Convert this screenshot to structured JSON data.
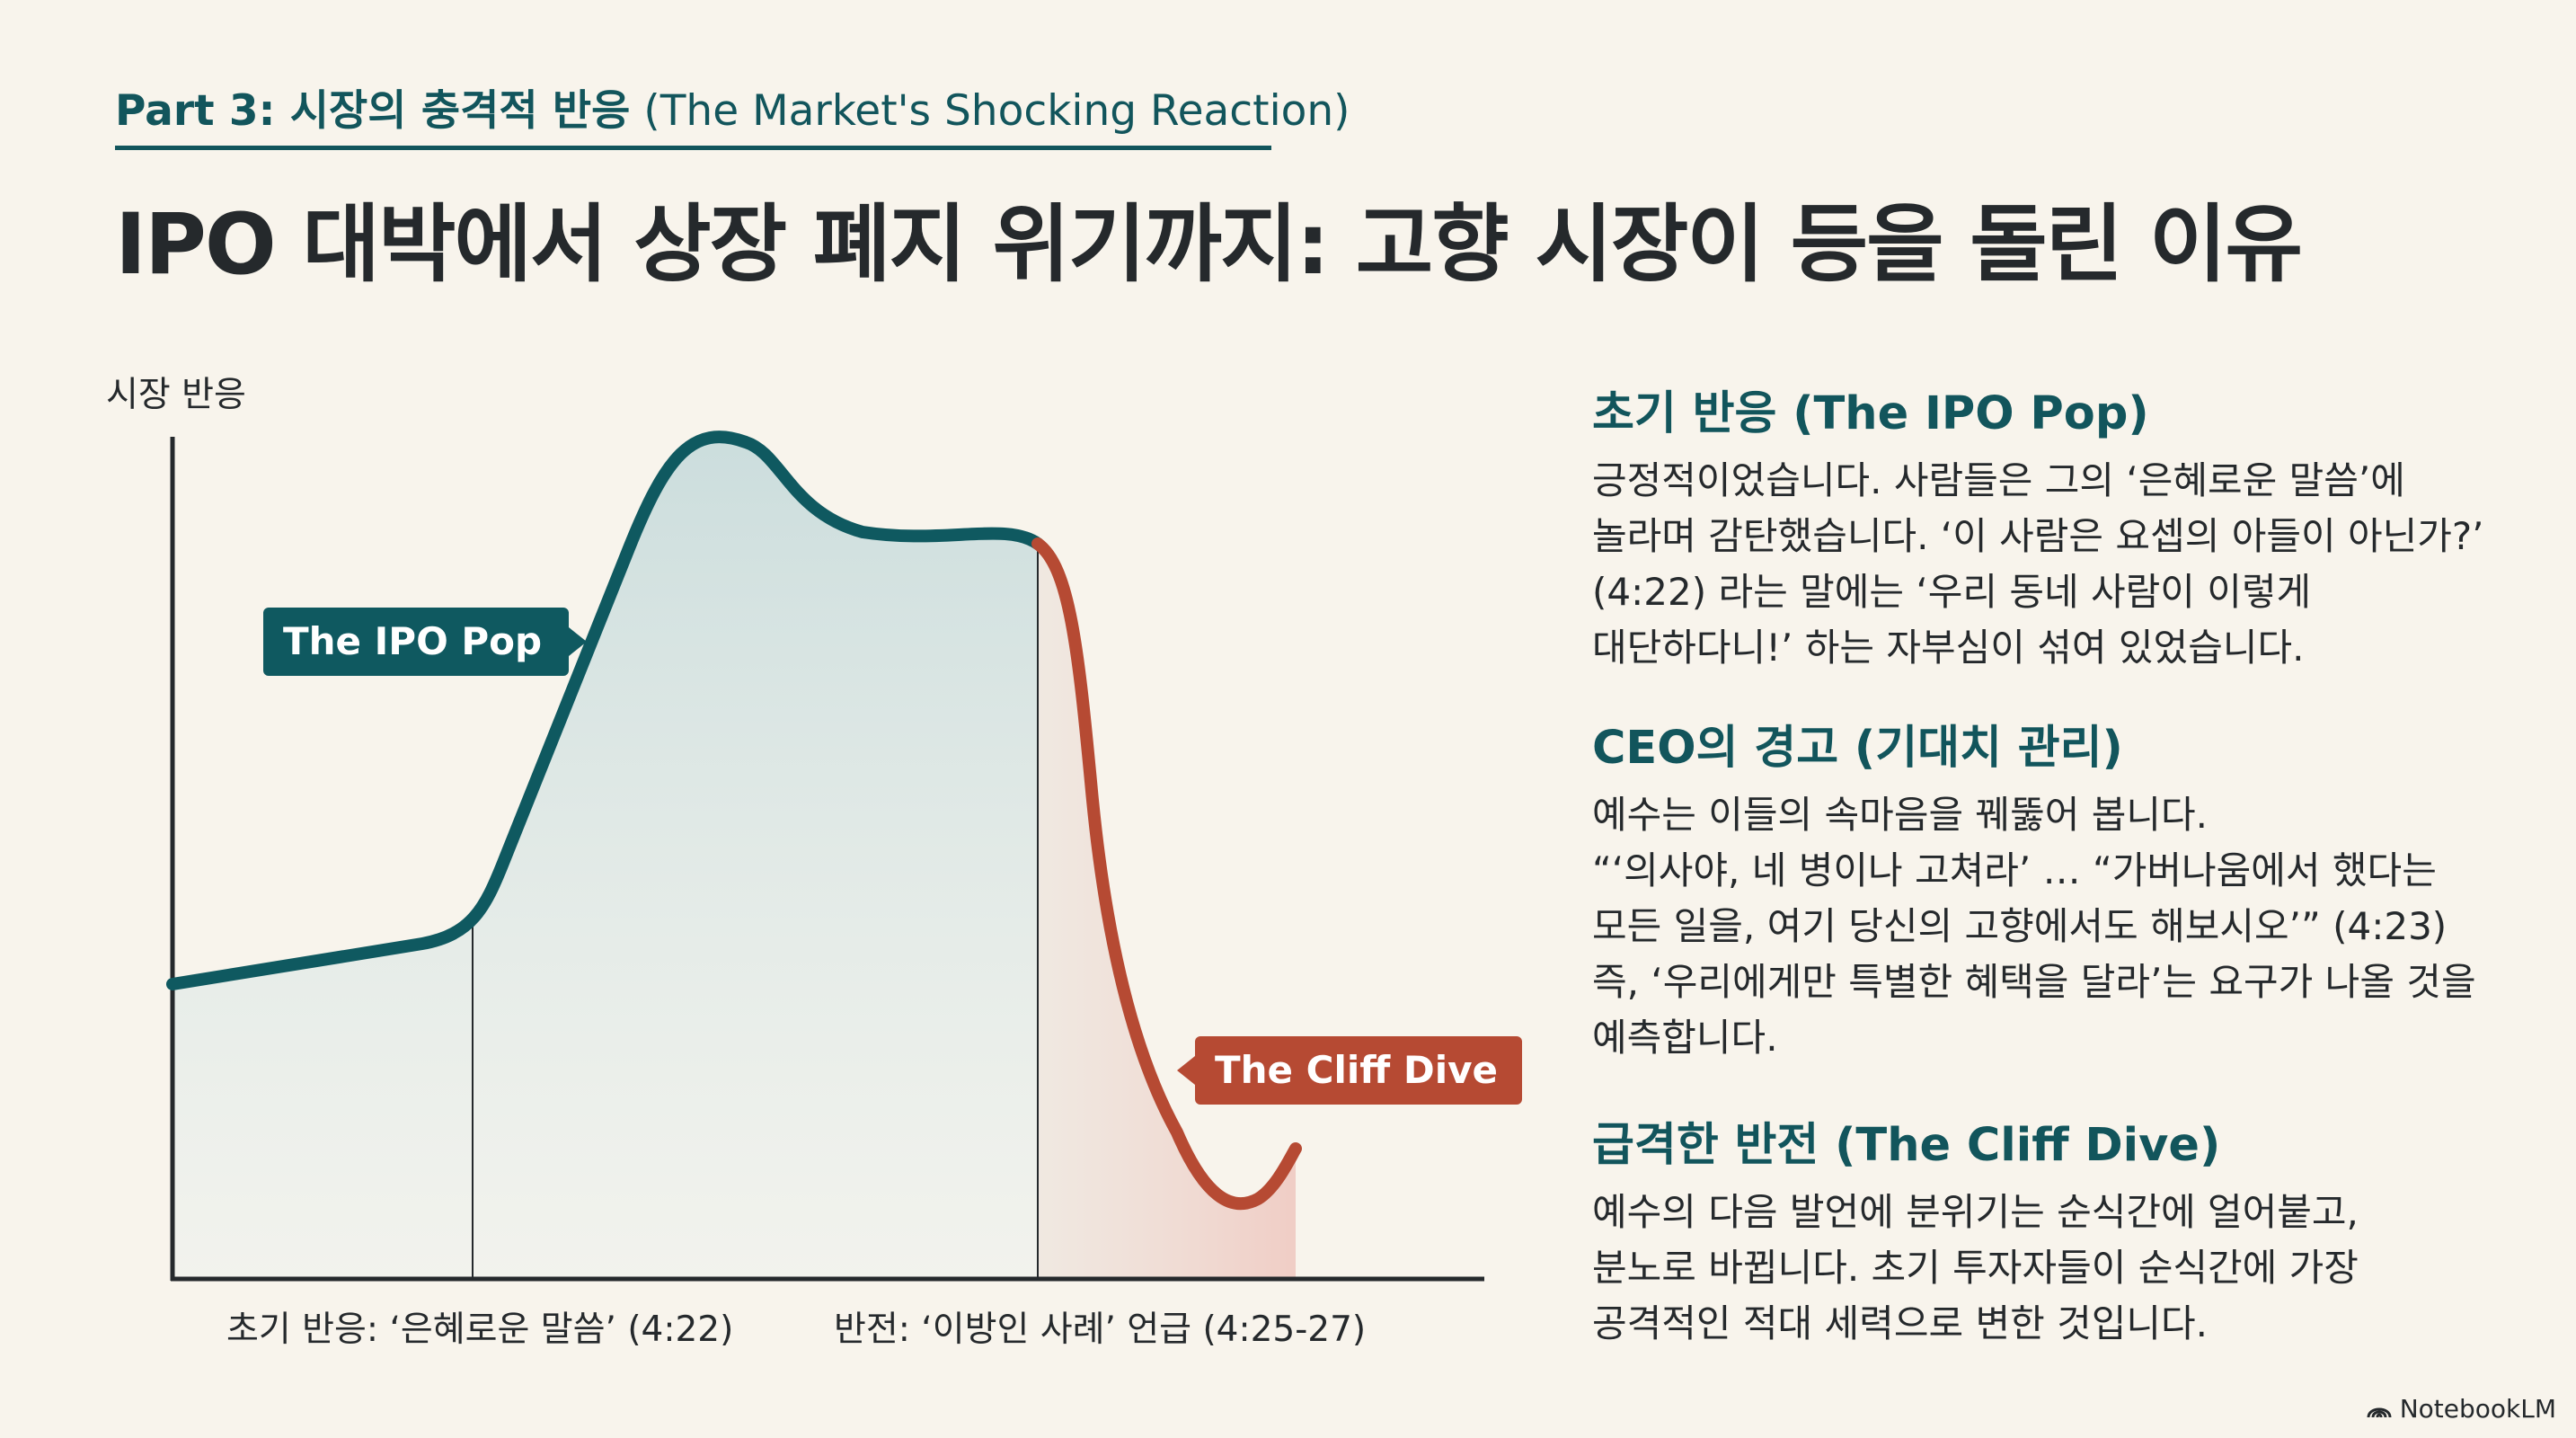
{
  "header": {
    "kicker_bold": "Part 3: 시장의 충격적 반응",
    "kicker_rest": "(The Market's Shocking Reaction)",
    "title": "IPO 대박에서 상장 폐지 위기까지: 고향 시장이 등을 돌린 이유"
  },
  "chart": {
    "y_label": "시장 반응",
    "x_label_1": "초기 반응: ‘은혜로운 말씀’ (4:22)",
    "x_label_2": "반전: ‘이방인 사례’ 언급 (4:25-27)",
    "tag_pop": "The IPO Pop",
    "tag_cliff": "The Cliff Dive",
    "colors": {
      "teal": "#0f5960",
      "red": "#b64a33"
    }
  },
  "chart_data": {
    "type": "line",
    "series": [
      {
        "values": []
      }
    ],
    "annotations": [
      "The IPO Pop",
      "The Cliff Dive"
    ],
    "xlabel": "",
    "ylabel": "시장 반응"
  },
  "sections": [
    {
      "heading": "초기 반응 (The IPO Pop)",
      "body": "긍정적이었습니다. 사람들은 그의 ‘은혜로운 말씀’에\n놀라며 감탄했습니다. ‘이 사람은 요셉의 아들이 아닌가?’\n(4:22) 라는 말에는 ‘우리 동네 사람이 이렇게\n대단하다니!’ 하는 자부심이 섞여 있었습니다."
    },
    {
      "heading": "CEO의 경고 (기대치 관리)",
      "body": "예수는 이들의 속마음을 꿰뚫어 봅니다.\n“‘의사야, 네 병이나 고쳐라’ … “가버나움에서 했다는\n모든 일을, 여기 당신의 고향에서도 해보시오’” (4:23)\n즉, ‘우리에게만 특별한 혜택을 달라’는 요구가 나올 것을\n예측합니다."
    },
    {
      "heading": "급격한 반전 (The Cliff Dive)",
      "body": "예수의 다음 발언에 분위기는 순식간에 얼어붙고,\n분노로 바뀝니다. 초기 투자자들이 순식간에 가장\n공격적인 적대 세력으로 변한 것입니다."
    }
  ],
  "brand": {
    "icon": "notebooklm-logo-icon",
    "label": "NotebookLM"
  }
}
